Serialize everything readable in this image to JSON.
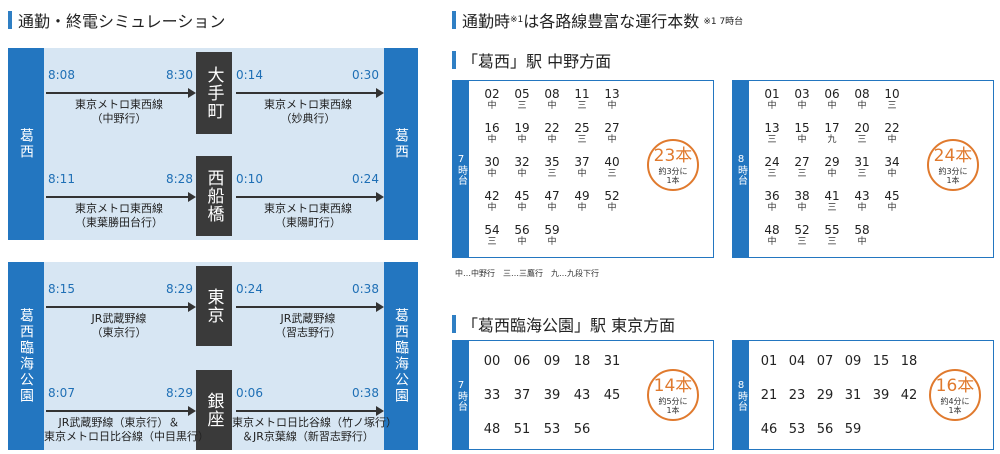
{
  "left": {
    "title": "通勤・終電シミュレーション",
    "top_group": {
      "start_station": "葛西",
      "end_station": "葛西",
      "rows": [
        {
          "transfer": "大手町",
          "dep": "8:08",
          "arr": "8:30",
          "route": [
            "東京メトロ東西線",
            "（中野行）"
          ],
          "last_dep": "0:14",
          "last_arr": "0:30",
          "last_route": [
            "東京メトロ東西線",
            "（妙典行）"
          ]
        },
        {
          "transfer": "西船橋",
          "dep": "8:11",
          "arr": "8:28",
          "route": [
            "東京メトロ東西線",
            "（東葉勝田台行）"
          ],
          "last_dep": "0:10",
          "last_arr": "0:24",
          "last_route": [
            "東京メトロ東西線",
            "（東陽町行）"
          ]
        }
      ]
    },
    "bottom_group": {
      "start_station": "葛西臨海公園",
      "end_station": "葛西臨海公園",
      "rows": [
        {
          "transfer": "東京",
          "dep": "8:15",
          "arr": "8:29",
          "route": [
            "JR武蔵野線",
            "（東京行）"
          ],
          "last_dep": "0:24",
          "last_arr": "0:38",
          "last_route": [
            "JR武蔵野線",
            "（習志野行）"
          ]
        },
        {
          "transfer": "銀座",
          "dep": "8:07",
          "arr": "8:29",
          "route": [
            "JR武蔵野線（東京行）＆",
            "東京メトロ日比谷線（中目黒行）"
          ],
          "last_dep": "0:06",
          "last_arr": "0:38",
          "last_route": [
            "東京メトロ日比谷線（竹ノ塚行）",
            "＆JR京葉線（新習志野行）"
          ]
        }
      ]
    }
  },
  "right": {
    "title": "通勤時",
    "title_note_mark": "※1",
    "title_rest": "は各路線豊富な運行本数",
    "title_note": "※1 7時台",
    "sec1_title": "「葛西」駅 中野方面",
    "sec2_title": "「葛西臨海公園」駅 東京方面",
    "legend": "中…中野行　三…三鷹行　九…九段下行",
    "tables": [
      {
        "hour": "7時台",
        "count": "23本",
        "interval": "約3分に",
        "per": "1本",
        "rows": [
          [
            [
              "02",
              "中"
            ],
            [
              "05",
              "三"
            ],
            [
              "08",
              "中"
            ],
            [
              "11",
              "三"
            ],
            [
              "13",
              "中"
            ]
          ],
          [
            [
              "16",
              "中"
            ],
            [
              "19",
              "中"
            ],
            [
              "22",
              "中"
            ],
            [
              "25",
              "三"
            ],
            [
              "27",
              "中"
            ]
          ],
          [
            [
              "30",
              "中"
            ],
            [
              "32",
              "中"
            ],
            [
              "35",
              "三"
            ],
            [
              "37",
              "中"
            ],
            [
              "40",
              "三"
            ]
          ],
          [
            [
              "42",
              "中"
            ],
            [
              "45",
              "中"
            ],
            [
              "47",
              "中"
            ],
            [
              "49",
              "中"
            ],
            [
              "52",
              "中"
            ]
          ],
          [
            [
              "54",
              "三"
            ],
            [
              "56",
              "中"
            ],
            [
              "59",
              "中"
            ]
          ]
        ]
      },
      {
        "hour": "8時台",
        "count": "24本",
        "interval": "約3分に",
        "per": "1本",
        "rows": [
          [
            [
              "01",
              "中"
            ],
            [
              "03",
              "中"
            ],
            [
              "06",
              "中"
            ],
            [
              "08",
              "中"
            ],
            [
              "10",
              "三"
            ]
          ],
          [
            [
              "13",
              "三"
            ],
            [
              "15",
              "中"
            ],
            [
              "17",
              "九"
            ],
            [
              "20",
              "三"
            ],
            [
              "22",
              "中"
            ]
          ],
          [
            [
              "24",
              "三"
            ],
            [
              "27",
              "三"
            ],
            [
              "29",
              "中"
            ],
            [
              "31",
              "三"
            ],
            [
              "34",
              "中"
            ]
          ],
          [
            [
              "36",
              "中"
            ],
            [
              "38",
              "中"
            ],
            [
              "41",
              "三"
            ],
            [
              "43",
              "中"
            ],
            [
              "45",
              "中"
            ]
          ],
          [
            [
              "48",
              "中"
            ],
            [
              "52",
              "三"
            ],
            [
              "55",
              "三"
            ],
            [
              "58",
              "中"
            ]
          ]
        ]
      },
      {
        "hour": "7時台",
        "count": "14本",
        "interval": "約5分に",
        "per": "1本",
        "rows": [
          [
            "00",
            "06",
            "09",
            "18",
            "31"
          ],
          [
            "33",
            "37",
            "39",
            "43",
            "45"
          ],
          [
            "48",
            "51",
            "53",
            "56"
          ]
        ]
      },
      {
        "hour": "8時台",
        "count": "16本",
        "interval": "約4分に",
        "per": "1本",
        "rows": [
          [
            "01",
            "04",
            "07",
            "09",
            "15",
            "18"
          ],
          [
            "21",
            "23",
            "29",
            "31",
            "39",
            "42"
          ],
          [
            "46",
            "53",
            "56",
            "59"
          ]
        ]
      }
    ]
  }
}
